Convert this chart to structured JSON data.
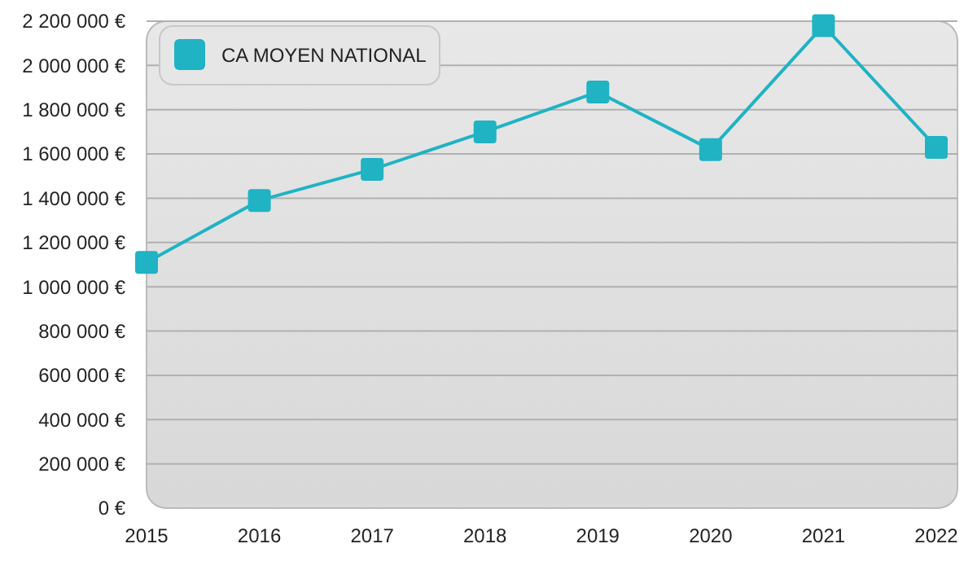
{
  "chart_data": {
    "type": "line",
    "categories": [
      "2015",
      "2016",
      "2017",
      "2018",
      "2019",
      "2020",
      "2021",
      "2022"
    ],
    "series": [
      {
        "name": "CA MOYEN NATIONAL",
        "color": "#1fb3c4",
        "values": [
          1110000,
          1390000,
          1530000,
          1700000,
          1880000,
          1620000,
          2180000,
          1630000
        ]
      }
    ],
    "ylim": [
      0,
      2200000
    ],
    "yticks": [
      {
        "value": 0,
        "label": "0 €"
      },
      {
        "value": 200000,
        "label": "200 000 €"
      },
      {
        "value": 400000,
        "label": "400 000 €"
      },
      {
        "value": 600000,
        "label": "600 000 €"
      },
      {
        "value": 800000,
        "label": "800 000 €"
      },
      {
        "value": 1000000,
        "label": "1 000 000 €"
      },
      {
        "value": 1200000,
        "label": "1 200 000 €"
      },
      {
        "value": 1400000,
        "label": "1 400 000 €"
      },
      {
        "value": 1600000,
        "label": "1 600 000 €"
      },
      {
        "value": 1800000,
        "label": "1 800 000 €"
      },
      {
        "value": 2000000,
        "label": "2 000 000 €"
      },
      {
        "value": 2200000,
        "label": "2 200 000 €"
      }
    ],
    "grid": "y",
    "legend": "top left",
    "marker": "square",
    "line_style": "solid"
  }
}
